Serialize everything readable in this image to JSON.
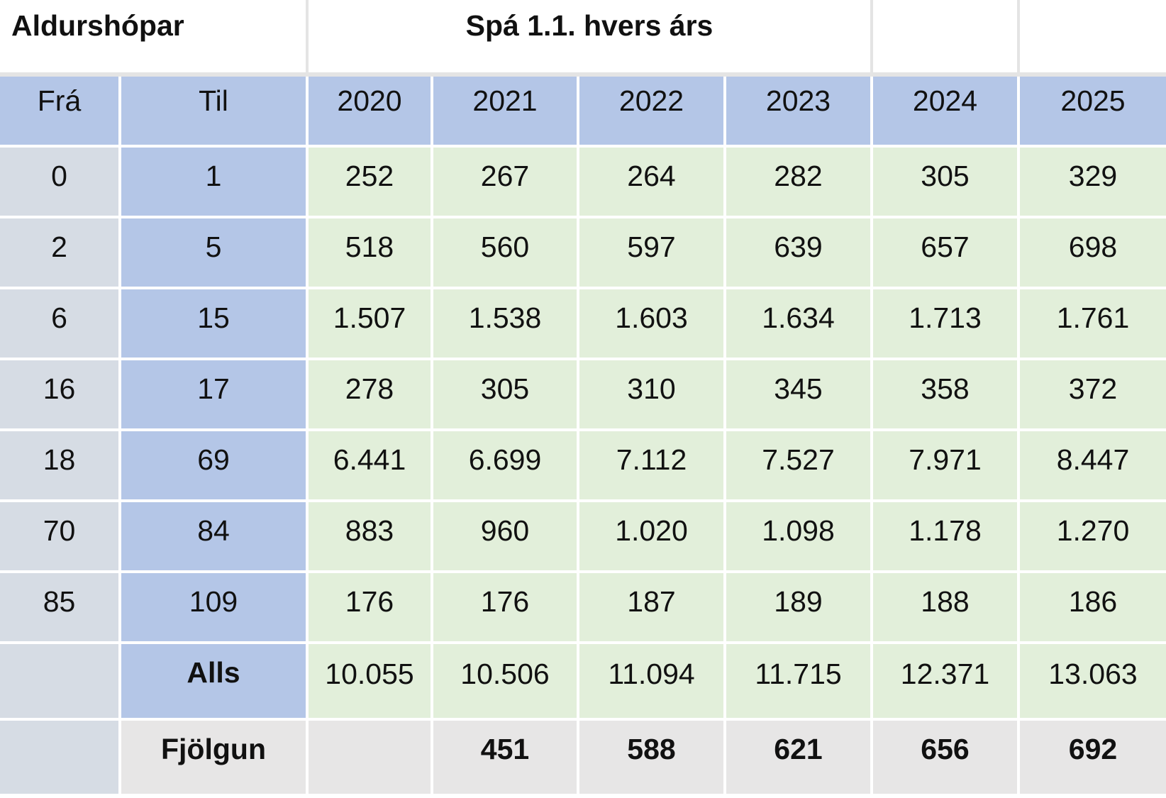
{
  "header": {
    "age_groups": "Aldurshópar",
    "forecast": "Spá 1.1. hvers árs"
  },
  "columns": {
    "from": "Frá",
    "to": "Til",
    "years": [
      "2020",
      "2021",
      "2022",
      "2023",
      "2024",
      "2025"
    ]
  },
  "rows": [
    {
      "from": "0",
      "to": "1",
      "values": [
        "252",
        "267",
        "264",
        "282",
        "305",
        "329"
      ]
    },
    {
      "from": "2",
      "to": "5",
      "values": [
        "518",
        "560",
        "597",
        "639",
        "657",
        "698"
      ]
    },
    {
      "from": "6",
      "to": "15",
      "values": [
        "1.507",
        "1.538",
        "1.603",
        "1.634",
        "1.713",
        "1.761"
      ]
    },
    {
      "from": "16",
      "to": "17",
      "values": [
        "278",
        "305",
        "310",
        "345",
        "358",
        "372"
      ]
    },
    {
      "from": "18",
      "to": "69",
      "values": [
        "6.441",
        "6.699",
        "7.112",
        "7.527",
        "7.971",
        "8.447"
      ]
    },
    {
      "from": "70",
      "to": "84",
      "values": [
        "883",
        "960",
        "1.020",
        "1.098",
        "1.178",
        "1.270"
      ]
    },
    {
      "from": "85",
      "to": "109",
      "values": [
        "176",
        "176",
        "187",
        "189",
        "188",
        "186"
      ]
    }
  ],
  "total": {
    "label": "Alls",
    "values": [
      "10.055",
      "10.506",
      "11.094",
      "11.715",
      "12.371",
      "13.063"
    ]
  },
  "increase": {
    "label": "Fjölgun",
    "values": [
      "",
      "451",
      "588",
      "621",
      "656",
      "692"
    ]
  },
  "colors": {
    "header_blue": "#b4c6e7",
    "from_gray": "#d6dce4",
    "value_green": "#e2efda",
    "footer_gray": "#e7e6e6"
  }
}
